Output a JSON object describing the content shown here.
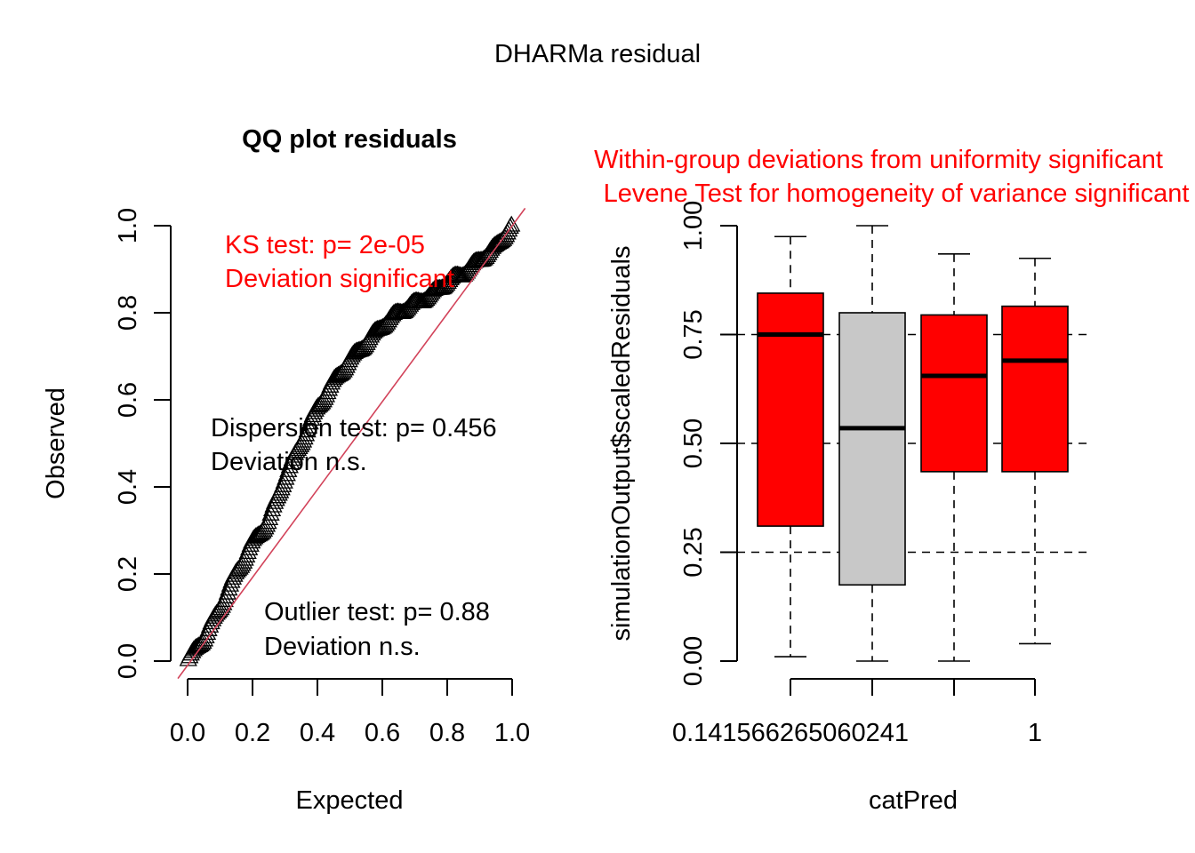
{
  "main_title": "DHARMa residual",
  "colors": {
    "red": "#ff0000",
    "gray": "#c8c8c8",
    "refline": "#d2435a"
  },
  "qq": {
    "title": "QQ plot residuals",
    "ks_line1": "KS test: p= 2e-05",
    "ks_line2": "Deviation  significant",
    "disp_line1": "Dispersion test: p= 0.456",
    "disp_line2": "Deviation  n.s.",
    "out_line1": "Outlier test: p= 0.88",
    "out_line2": "Deviation  n.s."
  },
  "box": {
    "warn_line1": "Within-group deviations from uniformity significant",
    "warn_line2": "Levene Test for homogeneity of variance significant"
  },
  "chart_data": [
    {
      "type": "scatter",
      "marker": "triangle-open",
      "title": "QQ plot residuals",
      "xlabel": "Expected",
      "ylabel": "Observed",
      "xlim": [
        0,
        1
      ],
      "ylim": [
        0,
        1
      ],
      "xticks": [
        "0.0",
        "0.2",
        "0.4",
        "0.6",
        "0.8",
        "1.0"
      ],
      "yticks": [
        "0.0",
        "0.2",
        "0.4",
        "0.6",
        "0.8",
        "1.0"
      ],
      "reference_line": "identity",
      "curve": [
        [
          0.0,
          0.0
        ],
        [
          0.05,
          0.05
        ],
        [
          0.1,
          0.12
        ],
        [
          0.15,
          0.2
        ],
        [
          0.2,
          0.27
        ],
        [
          0.25,
          0.32
        ],
        [
          0.3,
          0.42
        ],
        [
          0.35,
          0.5
        ],
        [
          0.4,
          0.58
        ],
        [
          0.45,
          0.64
        ],
        [
          0.5,
          0.69
        ],
        [
          0.55,
          0.73
        ],
        [
          0.6,
          0.77
        ],
        [
          0.65,
          0.8
        ],
        [
          0.7,
          0.82
        ],
        [
          0.75,
          0.84
        ],
        [
          0.8,
          0.87
        ],
        [
          0.85,
          0.89
        ],
        [
          0.9,
          0.92
        ],
        [
          0.95,
          0.95
        ],
        [
          1.0,
          1.0
        ]
      ]
    },
    {
      "type": "boxplot",
      "xlabel": "catPred",
      "ylabel": "simulationOutput$scaledResiduals",
      "ylim": [
        0,
        1
      ],
      "yticks": [
        "0.00",
        "0.25",
        "0.50",
        "0.75",
        "1.00"
      ],
      "hlines": [
        0.25,
        0.5,
        0.75
      ],
      "xtick_labels": [
        "0.141566265060241",
        "",
        "",
        "1"
      ],
      "boxes": [
        {
          "whisker_low": 0.01,
          "q1": 0.31,
          "median": 0.75,
          "q3": 0.845,
          "whisker_high": 0.975,
          "color": "#ff0000"
        },
        {
          "whisker_low": 0.0,
          "q1": 0.175,
          "median": 0.535,
          "q3": 0.8,
          "whisker_high": 1.0,
          "color": "#c8c8c8"
        },
        {
          "whisker_low": 0.0,
          "q1": 0.435,
          "median": 0.655,
          "q3": 0.795,
          "whisker_high": 0.935,
          "color": "#ff0000"
        },
        {
          "whisker_low": 0.04,
          "q1": 0.435,
          "median": 0.69,
          "q3": 0.815,
          "whisker_high": 0.925,
          "color": "#ff0000"
        }
      ]
    }
  ]
}
